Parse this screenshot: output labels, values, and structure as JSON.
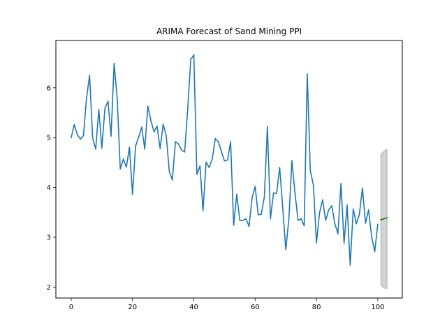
{
  "chart_data": {
    "type": "line",
    "title": "ARIMA Forecast of Sand Mining PPI",
    "xlabel": "",
    "ylabel": "",
    "xlim": [
      -5,
      108
    ],
    "ylim": [
      1.78,
      6.95
    ],
    "x_ticks": [
      0,
      20,
      40,
      60,
      80,
      100
    ],
    "y_ticks": [
      2,
      3,
      4,
      5,
      6
    ],
    "grid": false,
    "series": [
      {
        "role": "observed",
        "color": "#1f77b4",
        "x_start": 0,
        "values": [
          5.0,
          5.26,
          5.06,
          4.97,
          5.04,
          5.8,
          6.25,
          4.99,
          4.77,
          5.56,
          4.79,
          5.59,
          5.73,
          5.03,
          6.49,
          5.79,
          4.37,
          4.57,
          4.41,
          4.81,
          3.86,
          4.83,
          5.01,
          5.21,
          4.77,
          5.63,
          5.34,
          5.12,
          5.23,
          4.78,
          5.27,
          5.04,
          4.32,
          4.15,
          4.92,
          4.87,
          4.75,
          4.71,
          5.57,
          6.57,
          6.66,
          4.26,
          4.43,
          3.53,
          4.51,
          4.4,
          4.57,
          4.98,
          4.92,
          4.72,
          4.53,
          4.55,
          4.92,
          3.24,
          3.86,
          3.34,
          3.34,
          3.37,
          3.22,
          3.79,
          4.02,
          3.45,
          3.46,
          3.81,
          5.22,
          3.37,
          3.89,
          3.88,
          4.4,
          3.59,
          2.75,
          3.37,
          4.54,
          3.88,
          3.34,
          3.37,
          3.23,
          6.28,
          4.33,
          4.05,
          2.89,
          3.49,
          3.75,
          3.34,
          3.55,
          3.63,
          3.27,
          3.07,
          4.08,
          2.88,
          3.65,
          2.44,
          3.57,
          3.27,
          3.46,
          3.99,
          3.28,
          3.55,
          3.01,
          2.71,
          3.26
        ]
      },
      {
        "role": "forecast",
        "color": "#008000",
        "x": [
          101,
          102,
          103
        ],
        "values": [
          3.35,
          3.37,
          3.39
        ]
      }
    ],
    "confidence_band": {
      "color": "#d3d3d3",
      "x": [
        101,
        102,
        103
      ],
      "lower": [
        2.05,
        1.98,
        1.97
      ],
      "upper": [
        4.65,
        4.73,
        4.76
      ]
    }
  }
}
